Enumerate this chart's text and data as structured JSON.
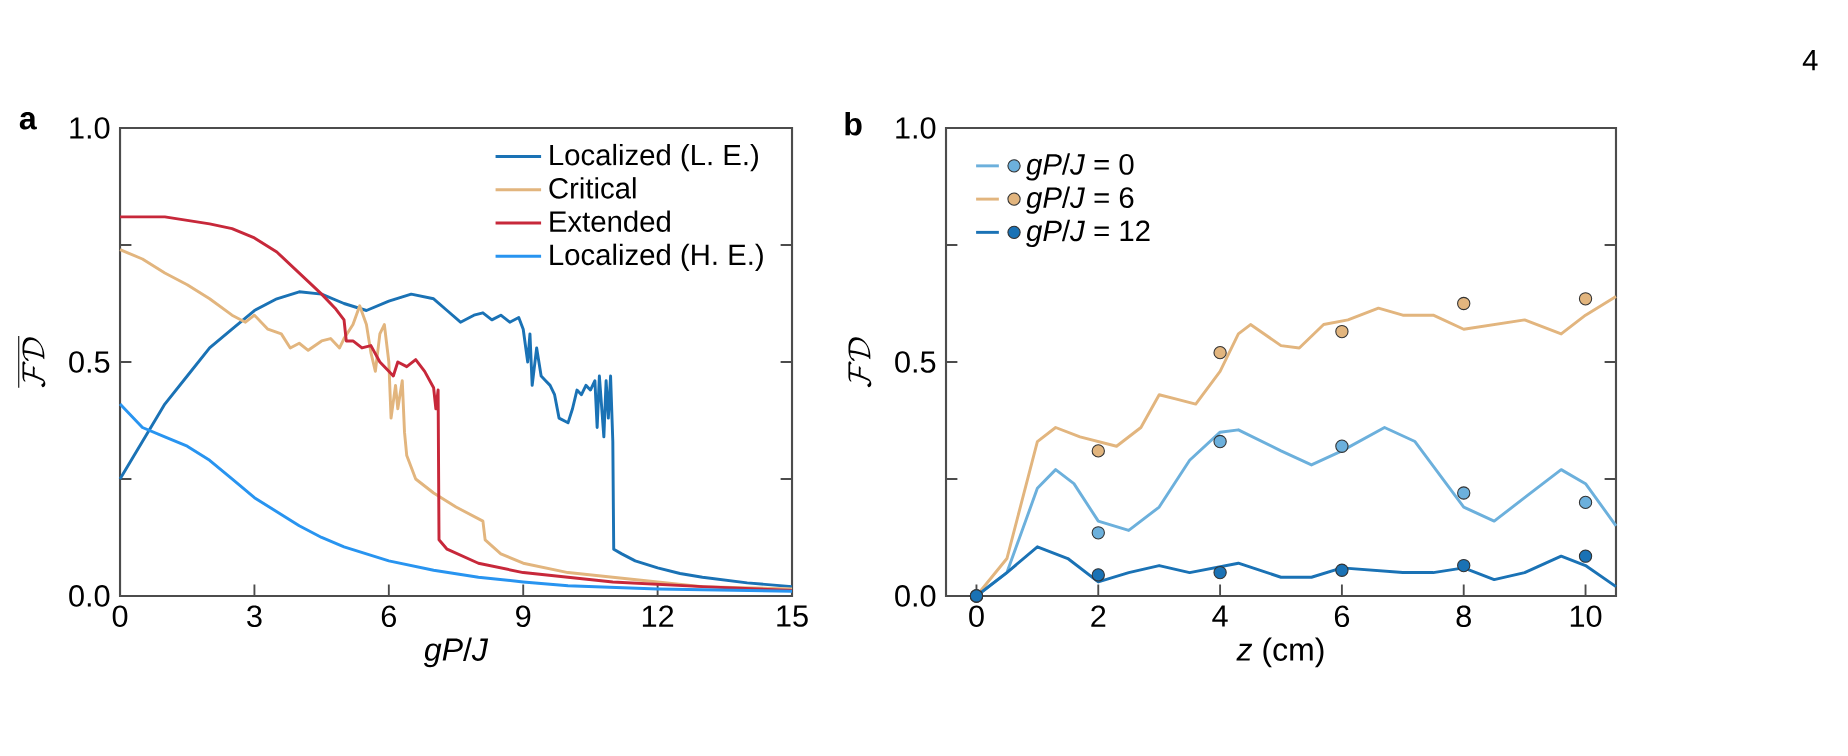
{
  "chart_data": [
    {
      "type": "line",
      "title": "a",
      "xlabel": "*gP*/*J*",
      "ylabel": "\\overline{\\mathcal{F}\\mathcal{D}}",
      "xlim": [
        0,
        15
      ],
      "ylim": [
        0,
        1
      ],
      "xticks": [
        0,
        3,
        6,
        9,
        12,
        15
      ],
      "yticks": [
        {
          "value": 0,
          "label": "0.0"
        },
        {
          "value": 0.25,
          "label": null
        },
        {
          "value": 0.5,
          "label": "0.5"
        },
        {
          "value": 0.75,
          "label": null
        },
        {
          "value": 1,
          "label": "1.0"
        }
      ],
      "legend": "top right",
      "series": [
        {
          "name": "Localized (L. E.)",
          "color": "#1a72b5",
          "x": [
            0,
            0.5,
            1,
            1.5,
            2,
            2.5,
            3,
            3.5,
            4,
            4.5,
            5,
            5.5,
            6,
            6.5,
            7,
            7.3,
            7.6,
            7.9,
            8.1,
            8.3,
            8.5,
            8.7,
            8.9,
            9.0,
            9.1,
            9.15,
            9.2,
            9.3,
            9.4,
            9.5,
            9.6,
            9.7,
            9.8,
            10.0,
            10.1,
            10.2,
            10.3,
            10.4,
            10.5,
            10.6,
            10.65,
            10.7,
            10.8,
            10.85,
            10.9,
            10.95,
            11.0,
            11.02,
            11.2,
            11.5,
            12,
            12.5,
            13,
            14,
            15
          ],
          "values": [
            0.25,
            0.33,
            0.41,
            0.47,
            0.53,
            0.57,
            0.61,
            0.635,
            0.65,
            0.645,
            0.625,
            0.61,
            0.63,
            0.645,
            0.635,
            0.61,
            0.585,
            0.6,
            0.605,
            0.59,
            0.6,
            0.585,
            0.595,
            0.57,
            0.5,
            0.56,
            0.45,
            0.53,
            0.47,
            0.46,
            0.45,
            0.43,
            0.38,
            0.37,
            0.4,
            0.44,
            0.43,
            0.45,
            0.44,
            0.46,
            0.36,
            0.47,
            0.34,
            0.46,
            0.38,
            0.47,
            0.33,
            0.1,
            0.09,
            0.075,
            0.06,
            0.048,
            0.04,
            0.028,
            0.02
          ]
        },
        {
          "name": "Critical",
          "color": "#e2b57e",
          "x": [
            0,
            0.5,
            1,
            1.5,
            2,
            2.5,
            2.8,
            3,
            3.3,
            3.6,
            3.8,
            4,
            4.2,
            4.5,
            4.7,
            4.9,
            5.0,
            5.2,
            5.35,
            5.5,
            5.6,
            5.7,
            5.8,
            5.9,
            6.0,
            6.05,
            6.15,
            6.2,
            6.3,
            6.35,
            6.4,
            6.6,
            7,
            7.5,
            8.1,
            8.15,
            8.5,
            9,
            10,
            11,
            12,
            13,
            15
          ],
          "values": [
            0.74,
            0.72,
            0.69,
            0.665,
            0.635,
            0.6,
            0.585,
            0.6,
            0.57,
            0.56,
            0.53,
            0.54,
            0.525,
            0.545,
            0.55,
            0.53,
            0.55,
            0.58,
            0.62,
            0.58,
            0.52,
            0.48,
            0.56,
            0.58,
            0.5,
            0.38,
            0.45,
            0.4,
            0.46,
            0.35,
            0.3,
            0.25,
            0.22,
            0.19,
            0.16,
            0.12,
            0.09,
            0.07,
            0.05,
            0.04,
            0.03,
            0.02,
            0.015
          ]
        },
        {
          "name": "Extended",
          "color": "#c7283a",
          "x": [
            0,
            1,
            2,
            2.5,
            3,
            3.5,
            4,
            4.5,
            4.8,
            5,
            5.05,
            5.2,
            5.4,
            5.6,
            5.8,
            6.0,
            6.1,
            6.2,
            6.4,
            6.6,
            6.8,
            7.0,
            7.05,
            7.1,
            7.12,
            7.3,
            8,
            9,
            10,
            11,
            13,
            15
          ],
          "values": [
            0.81,
            0.81,
            0.795,
            0.785,
            0.765,
            0.735,
            0.69,
            0.645,
            0.615,
            0.59,
            0.545,
            0.545,
            0.53,
            0.535,
            0.5,
            0.48,
            0.47,
            0.5,
            0.49,
            0.505,
            0.48,
            0.445,
            0.4,
            0.44,
            0.12,
            0.1,
            0.07,
            0.05,
            0.04,
            0.03,
            0.02,
            0.012
          ]
        },
        {
          "name": "Localized (H. E.)",
          "color": "#2894f0",
          "x": [
            0,
            0.5,
            1,
            1.5,
            2,
            2.5,
            3,
            3.5,
            4,
            4.5,
            5,
            6,
            7,
            8,
            9,
            10,
            12,
            15
          ],
          "values": [
            0.41,
            0.36,
            0.34,
            0.32,
            0.29,
            0.25,
            0.21,
            0.18,
            0.15,
            0.125,
            0.105,
            0.075,
            0.055,
            0.04,
            0.03,
            0.022,
            0.015,
            0.01
          ]
        }
      ]
    },
    {
      "type": "line",
      "title": "b",
      "xlabel": "*z* (cm)",
      "ylabel": "\\mathcal{F}\\mathcal{D}",
      "xlim": [
        -0.5,
        10.5
      ],
      "ylim": [
        0,
        1
      ],
      "xticks": [
        0,
        2,
        4,
        6,
        8,
        10
      ],
      "yticks": [
        {
          "value": 0,
          "label": "0.0"
        },
        {
          "value": 0.25,
          "label": null
        },
        {
          "value": 0.5,
          "label": "0.5"
        },
        {
          "value": 0.75,
          "label": null
        },
        {
          "value": 1,
          "label": "1.0"
        }
      ],
      "legend": "top left",
      "annotations": [
        "4"
      ],
      "series": [
        {
          "name": "*gP*/*J* = 0",
          "color": "#6cb0dc",
          "x": [
            0,
            0.5,
            1,
            1.3,
            1.6,
            2,
            2.5,
            3,
            3.5,
            4,
            4.3,
            5,
            5.5,
            6,
            6.7,
            7.2,
            8,
            8.5,
            9,
            9.6,
            10,
            10.5
          ],
          "values": [
            0,
            0.05,
            0.23,
            0.27,
            0.24,
            0.16,
            0.14,
            0.19,
            0.29,
            0.35,
            0.355,
            0.31,
            0.28,
            0.31,
            0.36,
            0.33,
            0.19,
            0.16,
            0.21,
            0.27,
            0.24,
            0.15
          ]
        },
        {
          "name": "*gP*/*J* = 6",
          "color": "#e2b57e",
          "x": [
            0,
            0.5,
            1,
            1.3,
            1.7,
            2.3,
            2.7,
            3,
            3.3,
            3.6,
            4,
            4.3,
            4.5,
            5,
            5.3,
            5.7,
            6.1,
            6.6,
            7,
            7.5,
            8,
            8.5,
            9,
            9.6,
            10,
            10.5
          ],
          "values": [
            0,
            0.08,
            0.33,
            0.36,
            0.34,
            0.32,
            0.36,
            0.43,
            0.42,
            0.41,
            0.48,
            0.56,
            0.58,
            0.535,
            0.53,
            0.58,
            0.59,
            0.615,
            0.6,
            0.6,
            0.57,
            0.58,
            0.59,
            0.56,
            0.6,
            0.64
          ]
        },
        {
          "name": "*gP*/*J* = 12",
          "color": "#1a72b5",
          "x": [
            0,
            0.5,
            1,
            1.5,
            2,
            2.5,
            3,
            3.5,
            4.3,
            5,
            5.5,
            6,
            7,
            7.5,
            8,
            8.5,
            9,
            9.6,
            10,
            10.5
          ],
          "values": [
            0,
            0.05,
            0.105,
            0.08,
            0.03,
            0.05,
            0.065,
            0.05,
            0.07,
            0.04,
            0.04,
            0.06,
            0.05,
            0.05,
            0.06,
            0.035,
            0.05,
            0.085,
            0.065,
            0.02
          ]
        },
        {
          "type": "scatter",
          "marker": "circle",
          "color": "#6cb0dc",
          "x": [
            0,
            2,
            4,
            6,
            8,
            10
          ],
          "values": [
            0,
            0.135,
            0.33,
            0.32,
            0.22,
            0.2
          ]
        },
        {
          "type": "scatter",
          "marker": "circle",
          "color": "#e2b57e",
          "x": [
            0,
            2,
            4,
            6,
            8,
            10
          ],
          "values": [
            0,
            0.31,
            0.52,
            0.565,
            0.625,
            0.635
          ]
        },
        {
          "type": "scatter",
          "marker": "circle",
          "color": "#1a72b5",
          "x": [
            0,
            2,
            4,
            6,
            8,
            10
          ],
          "values": [
            0,
            0.045,
            0.05,
            0.055,
            0.065,
            0.085
          ]
        }
      ]
    }
  ]
}
